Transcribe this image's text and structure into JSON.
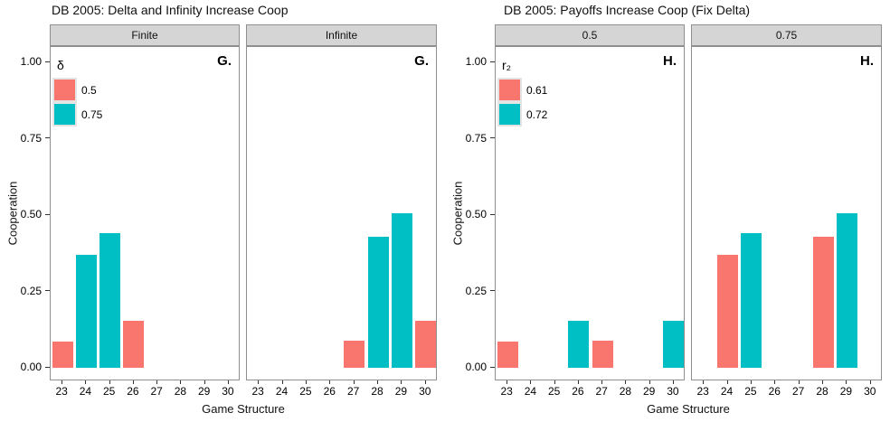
{
  "chart_data": [
    {
      "type": "bar",
      "title": "DB 2005: Delta and Infinity Increase Coop",
      "panel_label": "G.",
      "xlabel": "Game Structure",
      "ylabel": "Cooperation",
      "ylim": [
        0,
        1.05
      ],
      "grid": false,
      "legend_position": "top-left-inside-first-panel",
      "yticks": [
        0,
        0.25,
        0.5,
        0.75,
        1
      ],
      "ytick_labels": [
        "0.00",
        "0.25",
        "0.50",
        "0.75",
        "1.00"
      ],
      "categories": [
        23,
        24,
        25,
        26,
        27,
        28,
        29,
        30
      ],
      "legend": {
        "title": "δ",
        "entries": [
          {
            "label": "0.5",
            "color": "#F8766D"
          },
          {
            "label": "0.75",
            "color": "#00BFC4"
          }
        ]
      },
      "facets": [
        {
          "strip": "Finite",
          "bars": [
            {
              "x": 23,
              "value": 0.085,
              "series": "0.5"
            },
            {
              "x": 24,
              "value": 0.37,
              "series": "0.75"
            },
            {
              "x": 25,
              "value": 0.44,
              "series": "0.75"
            },
            {
              "x": 26,
              "value": 0.155,
              "series": "0.5"
            }
          ]
        },
        {
          "strip": "Infinite",
          "bars": [
            {
              "x": 27,
              "value": 0.09,
              "series": "0.5"
            },
            {
              "x": 28,
              "value": 0.43,
              "series": "0.75"
            },
            {
              "x": 29,
              "value": 0.505,
              "series": "0.75"
            },
            {
              "x": 30,
              "value": 0.155,
              "series": "0.5"
            }
          ]
        }
      ]
    },
    {
      "type": "bar",
      "title": "DB 2005: Payoffs Increase Coop (Fix Delta)",
      "panel_label": "H.",
      "xlabel": "Game Structure",
      "ylabel": "Cooperation",
      "ylim": [
        0,
        1.05
      ],
      "grid": false,
      "legend_position": "top-left-inside-first-panel",
      "yticks": [
        0,
        0.25,
        0.5,
        0.75,
        1
      ],
      "ytick_labels": [
        "0.00",
        "0.25",
        "0.50",
        "0.75",
        "1.00"
      ],
      "categories": [
        23,
        24,
        25,
        26,
        27,
        28,
        29,
        30
      ],
      "legend": {
        "title": "r₂",
        "entries": [
          {
            "label": "0.61",
            "color": "#F8766D"
          },
          {
            "label": "0.72",
            "color": "#00BFC4"
          }
        ]
      },
      "facets": [
        {
          "strip": "0.5",
          "bars": [
            {
              "x": 23,
              "value": 0.085,
              "series": "0.61"
            },
            {
              "x": 26,
              "value": 0.155,
              "series": "0.72"
            },
            {
              "x": 27,
              "value": 0.09,
              "series": "0.61"
            },
            {
              "x": 30,
              "value": 0.155,
              "series": "0.72"
            }
          ]
        },
        {
          "strip": "0.75",
          "bars": [
            {
              "x": 24,
              "value": 0.37,
              "series": "0.61"
            },
            {
              "x": 25,
              "value": 0.44,
              "series": "0.72"
            },
            {
              "x": 28,
              "value": 0.43,
              "series": "0.61"
            },
            {
              "x": 29,
              "value": 0.505,
              "series": "0.72"
            }
          ]
        }
      ]
    }
  ]
}
